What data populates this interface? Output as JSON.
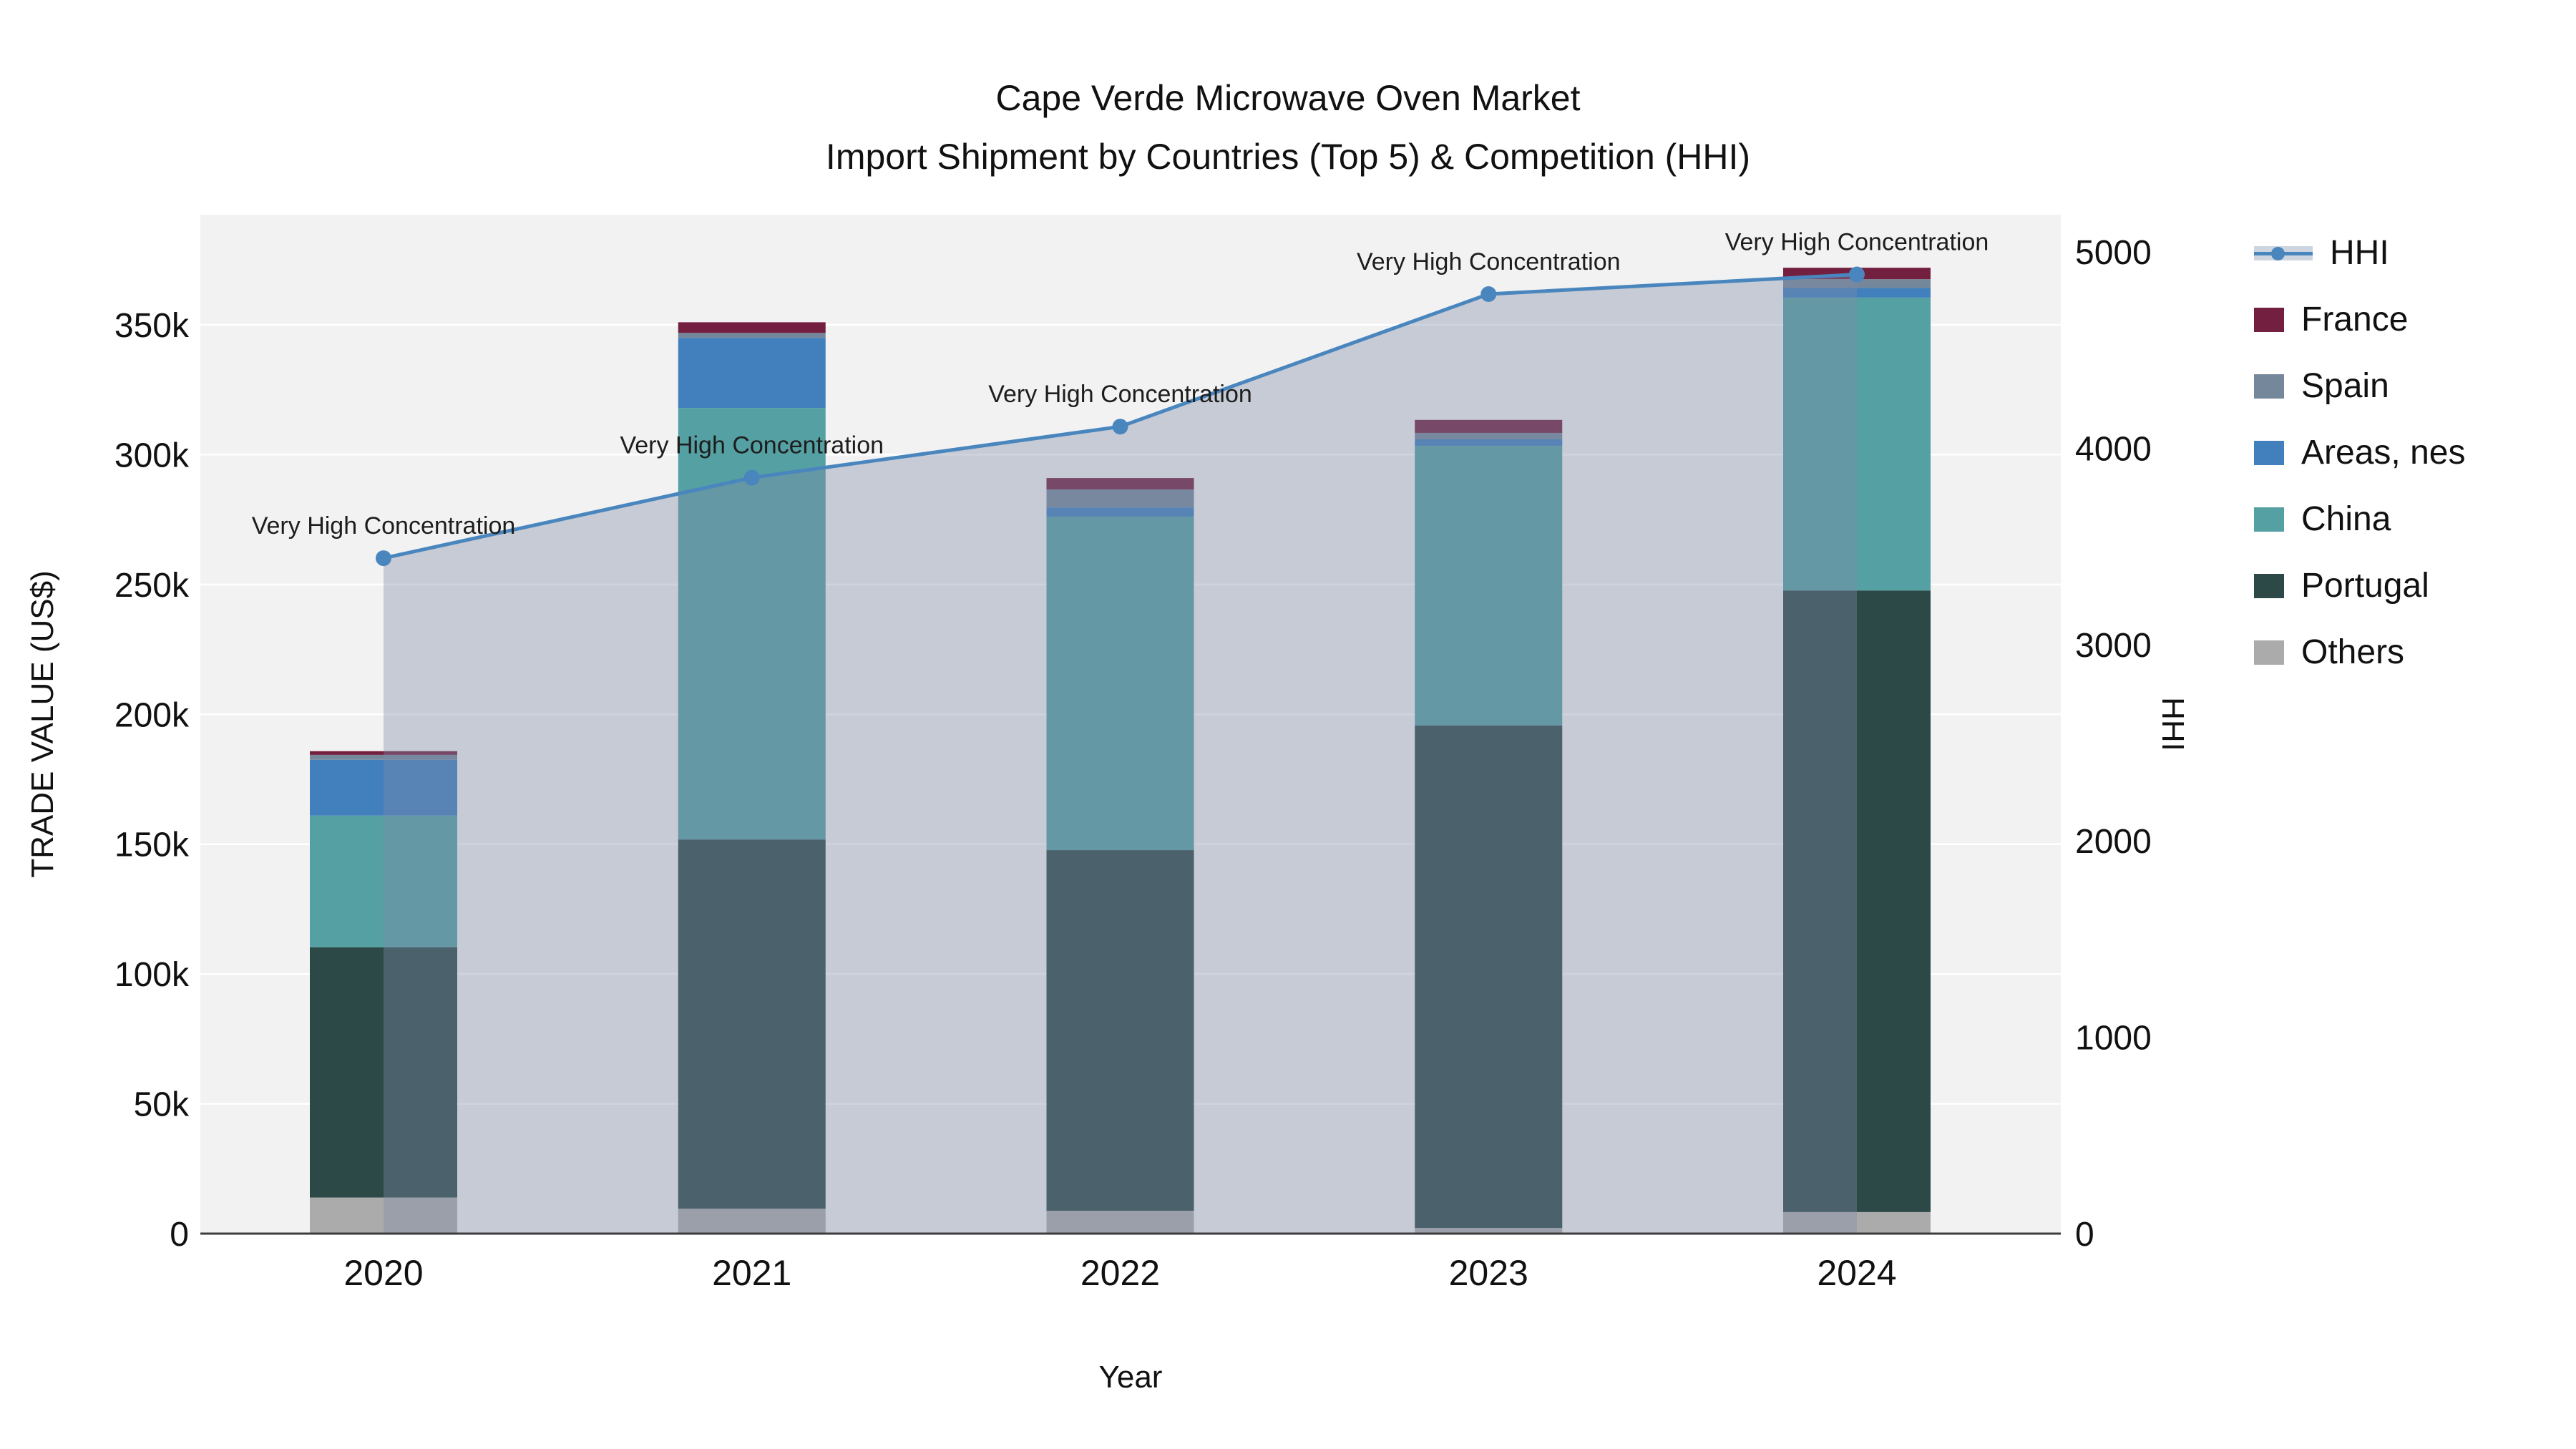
{
  "title": {
    "line1": "Cape Verde Microwave Oven Market",
    "line2": "Import Shipment by Countries (Top 5) & Competition (HHI)"
  },
  "axes": {
    "x_title": "Year",
    "y_left_title": "TRADE VALUE (US$)",
    "y_right_title": "HHI"
  },
  "annotation_text": "Very High Concentration",
  "colors": {
    "plot_background": "#f2f2f2",
    "gridline": "#ffffff",
    "x_axis_line": "#3c3c3c",
    "hhi_line": "#4a86be",
    "hhi_area_fill": "rgba(125,140,168,0.38)",
    "legend_hhi_band": "#cdd5e0"
  },
  "chart_data": {
    "type": "bar",
    "subtype": "stacked-bars-with-line-overlay",
    "categories": [
      "2020",
      "2021",
      "2022",
      "2023",
      "2024"
    ],
    "bar_series": [
      {
        "name": "Others",
        "color": "#ababab",
        "values": [
          13900,
          9600,
          8800,
          2200,
          8300
        ]
      },
      {
        "name": "Portugal",
        "color": "#2c4948",
        "values": [
          96400,
          142200,
          138900,
          193500,
          239400
        ]
      },
      {
        "name": "China",
        "color": "#55a0a3",
        "values": [
          50700,
          166200,
          128400,
          107700,
          112800
        ]
      },
      {
        "name": "Areas, nes",
        "color": "#4280bd",
        "values": [
          21500,
          27000,
          3600,
          2500,
          3700
        ]
      },
      {
        "name": "Spain",
        "color": "#75879a",
        "values": [
          1900,
          1900,
          6900,
          2500,
          3400
        ]
      },
      {
        "name": "France",
        "color": "#731f40",
        "values": [
          1400,
          4100,
          4400,
          5000,
          4400
        ]
      }
    ],
    "line_series": {
      "name": "HHI",
      "color": "#4a86be",
      "values": [
        3440,
        3850,
        4110,
        4785,
        4885
      ],
      "point_annotations": [
        "Very High Concentration",
        "Very High Concentration",
        "Very High Concentration",
        "Very High Concentration",
        "Very High Concentration"
      ]
    },
    "title": "Cape Verde Microwave Oven Market — Import Shipment by Countries (Top 5) & Competition (HHI)",
    "xlabel": "Year",
    "ylabel_left": "TRADE VALUE (US$)",
    "ylabel_right": "HHI",
    "y_left": {
      "range": [
        0,
        392000
      ],
      "ticks": [
        {
          "v": 0,
          "label": "0"
        },
        {
          "v": 50000,
          "label": "50k"
        },
        {
          "v": 100000,
          "label": "100k"
        },
        {
          "v": 150000,
          "label": "150k"
        },
        {
          "v": 200000,
          "label": "200k"
        },
        {
          "v": 250000,
          "label": "250k"
        },
        {
          "v": 300000,
          "label": "300k"
        },
        {
          "v": 350000,
          "label": "350k"
        }
      ]
    },
    "y_right": {
      "range": [
        0,
        5000
      ],
      "ticks": [
        {
          "v": 0,
          "label": "0"
        },
        {
          "v": 1000,
          "label": "1000"
        },
        {
          "v": 2000,
          "label": "2000"
        },
        {
          "v": 3000,
          "label": "3000"
        },
        {
          "v": 4000,
          "label": "4000"
        },
        {
          "v": 5000,
          "label": "5000"
        }
      ]
    },
    "grid": true,
    "legend_position": "right",
    "legend_order": [
      "HHI",
      "France",
      "Spain",
      "Areas, nes",
      "China",
      "Portugal",
      "Others"
    ]
  }
}
